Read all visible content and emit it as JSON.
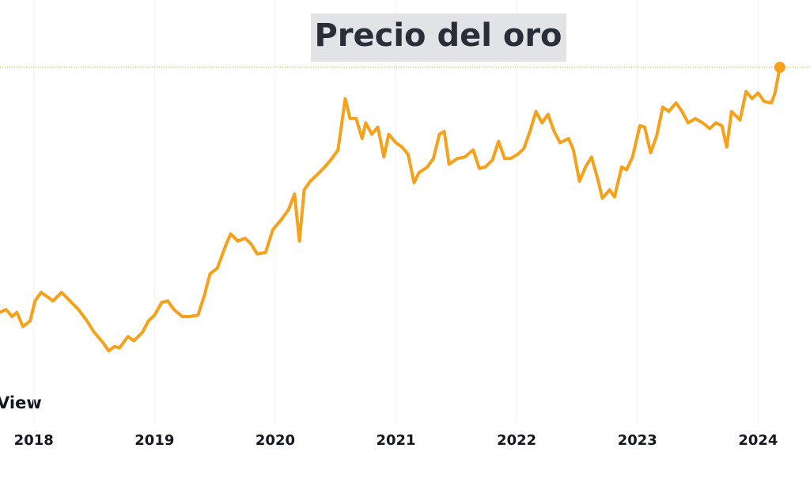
{
  "chart_data": {
    "type": "line",
    "title": "Precio del oro",
    "watermark": "View",
    "xlim": [
      2017.72,
      2024.43
    ],
    "xticks": [
      2018,
      2019,
      2020,
      2021,
      2022,
      2023,
      2024
    ],
    "ylim": [
      1000,
      2200
    ],
    "grid": true,
    "series": [
      {
        "color": "#f7a11a",
        "x": [
          2017.72,
          2017.77,
          2017.82,
          2017.86,
          2017.91,
          2017.97,
          2018.01,
          2018.06,
          2018.11,
          2018.16,
          2018.23,
          2018.3,
          2018.37,
          2018.44,
          2018.5,
          2018.57,
          2018.62,
          2018.67,
          2018.71,
          2018.78,
          2018.83,
          2018.9,
          2018.95,
          2019.0,
          2019.06,
          2019.11,
          2019.16,
          2019.23,
          2019.29,
          2019.36,
          2019.41,
          2019.46,
          2019.52,
          2019.59,
          2019.63,
          2019.69,
          2019.75,
          2019.8,
          2019.85,
          2019.92,
          2019.98,
          2020.05,
          2020.11,
          2020.16,
          2020.2,
          2020.24,
          2020.29,
          2020.34,
          2020.41,
          2020.47,
          2020.52,
          2020.58,
          2020.62,
          2020.67,
          2020.72,
          2020.75,
          2020.8,
          2020.85,
          2020.9,
          2020.94,
          2021.0,
          2021.05,
          2021.1,
          2021.15,
          2021.19,
          2021.26,
          2021.31,
          2021.36,
          2021.4,
          2021.44,
          2021.51,
          2021.57,
          2021.64,
          2021.69,
          2021.74,
          2021.8,
          2021.85,
          2021.9,
          2021.95,
          2022.01,
          2022.06,
          2022.11,
          2022.16,
          2022.21,
          2022.26,
          2022.31,
          2022.36,
          2022.43,
          2022.47,
          2022.52,
          2022.57,
          2022.62,
          2022.67,
          2022.71,
          2022.77,
          2022.81,
          2022.87,
          2022.91,
          2022.96,
          2023.02,
          2023.06,
          2023.11,
          2023.16,
          2023.21,
          2023.26,
          2023.32,
          2023.37,
          2023.42,
          2023.48,
          2023.54,
          2023.6,
          2023.65,
          2023.7,
          2023.74,
          2023.78,
          2023.85,
          2023.9,
          2023.95,
          2024.0,
          2024.05,
          2024.11,
          2024.14,
          2024.18
        ],
        "values": [
          1315,
          1325,
          1300,
          1315,
          1265,
          1285,
          1355,
          1385,
          1370,
          1355,
          1385,
          1355,
          1325,
          1285,
          1245,
          1210,
          1180,
          1195,
          1190,
          1230,
          1215,
          1245,
          1285,
          1305,
          1350,
          1355,
          1325,
          1300,
          1300,
          1305,
          1370,
          1450,
          1470,
          1550,
          1590,
          1565,
          1575,
          1555,
          1520,
          1525,
          1605,
          1640,
          1675,
          1730,
          1565,
          1745,
          1775,
          1795,
          1825,
          1855,
          1885,
          2065,
          1995,
          1995,
          1925,
          1980,
          1940,
          1965,
          1860,
          1940,
          1910,
          1895,
          1870,
          1770,
          1805,
          1825,
          1855,
          1940,
          1950,
          1835,
          1855,
          1860,
          1885,
          1820,
          1825,
          1850,
          1915,
          1855,
          1855,
          1870,
          1890,
          1950,
          2020,
          1980,
          2010,
          1950,
          1910,
          1925,
          1885,
          1775,
          1825,
          1860,
          1785,
          1715,
          1745,
          1720,
          1825,
          1815,
          1860,
          1970,
          1965,
          1875,
          1935,
          2035,
          2020,
          2050,
          2020,
          1980,
          1995,
          1980,
          1960,
          1980,
          1970,
          1895,
          2020,
          1990,
          2090,
          2065,
          2085,
          2055,
          2050,
          2085,
          2175
        ]
      }
    ]
  }
}
